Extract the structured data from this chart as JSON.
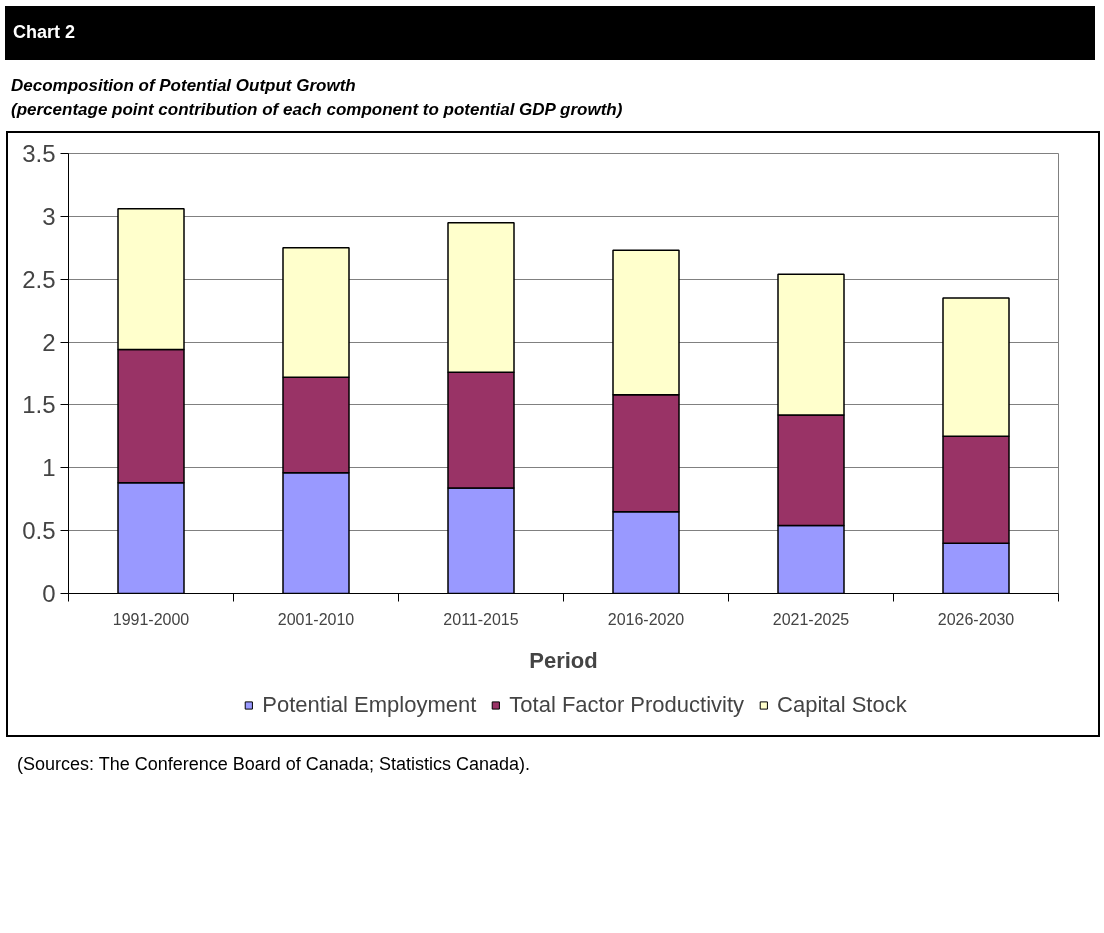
{
  "chart_data": {
    "type": "bar",
    "title": "Chart 2",
    "subtitle": "Decomposition of Potential Output Growth\n(percentage point contribution of each component to potential GDP growth)",
    "xlabel": "Period",
    "categories": [
      "1991-2000",
      "2001-2010",
      "2011-2015",
      "2016-2020",
      "2021-2025",
      "2026-2030"
    ],
    "series": [
      {
        "name": "Potential Employment",
        "color": "#9999ff",
        "values": [
          0.88,
          0.96,
          0.84,
          0.65,
          0.54,
          0.4
        ]
      },
      {
        "name": "Total Factor Productivity",
        "color": "#993366",
        "values": [
          1.06,
          0.76,
          0.92,
          0.93,
          0.88,
          0.85
        ]
      },
      {
        "name": "Capital Stock",
        "color": "#ffffcc",
        "values": [
          1.12,
          1.03,
          1.19,
          1.15,
          1.12,
          1.1
        ]
      }
    ],
    "stacked": true,
    "ylim": [
      0,
      3.5
    ],
    "yticks": [
      0,
      0.5,
      1,
      1.5,
      2,
      2.5,
      3,
      3.5
    ],
    "grid": "y",
    "legend": "bottom",
    "annotations": [
      "(Sources: The Conference Board of Canada; Statistics Canada)."
    ]
  }
}
